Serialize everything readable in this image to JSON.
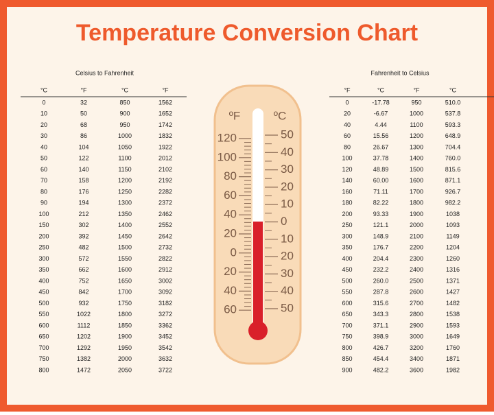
{
  "title": "Temperature Conversion Chart",
  "celsius_to_fahrenheit": {
    "title": "Celsius to Fahrenheit",
    "headers": [
      "°C",
      "°F",
      "°C",
      "°F"
    ],
    "rows": [
      [
        "0",
        "32",
        "850",
        "1562"
      ],
      [
        "10",
        "50",
        "900",
        "1652"
      ],
      [
        "20",
        "68",
        "950",
        "1742"
      ],
      [
        "30",
        "86",
        "1000",
        "1832"
      ],
      [
        "40",
        "104",
        "1050",
        "1922"
      ],
      [
        "50",
        "122",
        "1100",
        "2012"
      ],
      [
        "60",
        "140",
        "1150",
        "2102"
      ],
      [
        "70",
        "158",
        "1200",
        "2192"
      ],
      [
        "80",
        "176",
        "1250",
        "2282"
      ],
      [
        "90",
        "194",
        "1300",
        "2372"
      ],
      [
        "100",
        "212",
        "1350",
        "2462"
      ],
      [
        "150",
        "302",
        "1400",
        "2552"
      ],
      [
        "200",
        "392",
        "1450",
        "2642"
      ],
      [
        "250",
        "482",
        "1500",
        "2732"
      ],
      [
        "300",
        "572",
        "1550",
        "2822"
      ],
      [
        "350",
        "662",
        "1600",
        "2912"
      ],
      [
        "400",
        "752",
        "1650",
        "3002"
      ],
      [
        "450",
        "842",
        "1700",
        "3092"
      ],
      [
        "500",
        "932",
        "1750",
        "3182"
      ],
      [
        "550",
        "1022",
        "1800",
        "3272"
      ],
      [
        "600",
        "1112",
        "1850",
        "3362"
      ],
      [
        "650",
        "1202",
        "1900",
        "3452"
      ],
      [
        "700",
        "1292",
        "1950",
        "3542"
      ],
      [
        "750",
        "1382",
        "2000",
        "3632"
      ],
      [
        "800",
        "1472",
        "2050",
        "3722"
      ]
    ]
  },
  "fahrenheit_to_celsius": {
    "title": "Fahrenheit to Celsius",
    "headers": [
      "°F",
      "°C",
      "°F",
      "°C"
    ],
    "rows": [
      [
        "0",
        "-17.78",
        "950",
        "510.0"
      ],
      [
        "20",
        "-6.67",
        "1000",
        "537.8"
      ],
      [
        "40",
        "4.44",
        "1100",
        "593.3"
      ],
      [
        "60",
        "15.56",
        "1200",
        "648.9"
      ],
      [
        "80",
        "26.67",
        "1300",
        "704.4"
      ],
      [
        "100",
        "37.78",
        "1400",
        "760.0"
      ],
      [
        "120",
        "48.89",
        "1500",
        "815.6"
      ],
      [
        "140",
        "60.00",
        "1600",
        "871.1"
      ],
      [
        "160",
        "71.11",
        "1700",
        "926.7"
      ],
      [
        "180",
        "82.22",
        "1800",
        "982.2"
      ],
      [
        "200",
        "93.33",
        "1900",
        "1038"
      ],
      [
        "250",
        "121.1",
        "2000",
        "1093"
      ],
      [
        "300",
        "148.9",
        "2100",
        "1149"
      ],
      [
        "350",
        "176.7",
        "2200",
        "1204"
      ],
      [
        "400",
        "204.4",
        "2300",
        "1260"
      ],
      [
        "450",
        "232.2",
        "2400",
        "1316"
      ],
      [
        "500",
        "260.0",
        "2500",
        "1371"
      ],
      [
        "550",
        "287.8",
        "2600",
        "1427"
      ],
      [
        "600",
        "315.6",
        "2700",
        "1482"
      ],
      [
        "650",
        "343.3",
        "2800",
        "1538"
      ],
      [
        "700",
        "371.1",
        "2900",
        "1593"
      ],
      [
        "750",
        "398.9",
        "3000",
        "1649"
      ],
      [
        "800",
        "426.7",
        "3200",
        "1760"
      ],
      [
        "850",
        "454.4",
        "3400",
        "1871"
      ],
      [
        "900",
        "482.2",
        "3600",
        "1982"
      ]
    ]
  },
  "thermometer": {
    "fahrenheit_unit": "ºF",
    "celsius_unit": "ºC",
    "fahrenheit_labels": [
      "120",
      "100",
      "80",
      "60",
      "40",
      "20",
      "0",
      "20",
      "40",
      "60"
    ],
    "celsius_labels": [
      "50",
      "40",
      "30",
      "20",
      "10",
      "0",
      "10",
      "20",
      "30",
      "40",
      "50"
    ]
  }
}
